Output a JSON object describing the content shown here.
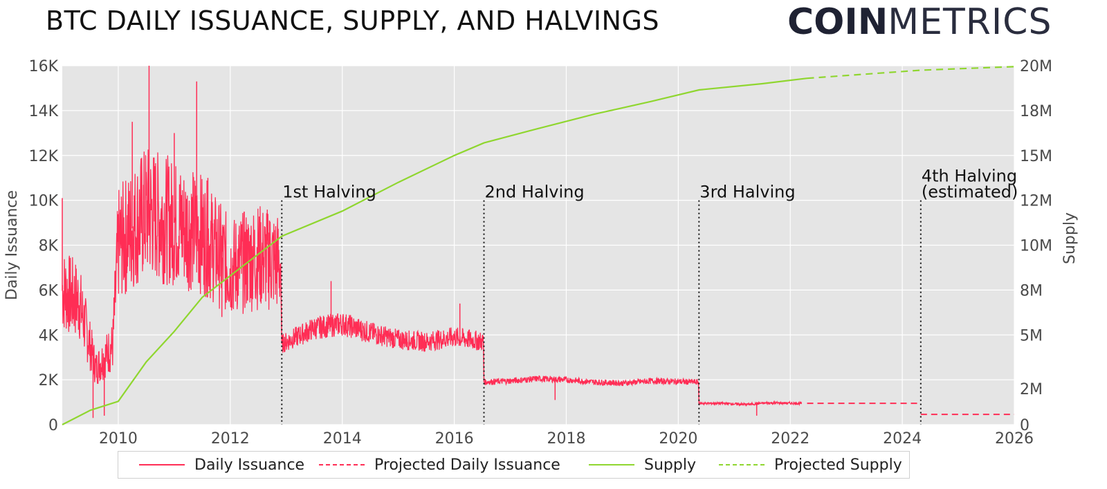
{
  "title": "BTC DAILY ISSUANCE, SUPPLY, AND HALVINGS",
  "logo": {
    "bold": "COIN",
    "light": "METRICS"
  },
  "chart_data": {
    "type": "line",
    "x_axis": {
      "label": "",
      "range": [
        2009,
        2026
      ],
      "ticks": [
        "2010",
        "2012",
        "2014",
        "2016",
        "2018",
        "2020",
        "2022",
        "2024",
        "2026"
      ]
    },
    "y_left": {
      "label": "Daily Issuance",
      "range": [
        0,
        16000
      ],
      "ticks": [
        "0",
        "2K",
        "4K",
        "6K",
        "8K",
        "10K",
        "12K",
        "14K",
        "16K"
      ]
    },
    "y_right": {
      "label": "Supply",
      "range": [
        0,
        20000000
      ],
      "ticks": [
        "0",
        "2M",
        "5M",
        "8M",
        "10M",
        "12M",
        "15M",
        "18M",
        "20M"
      ]
    },
    "grid": true,
    "legend_position": "bottom",
    "colors": {
      "issuance": "#ff2d55",
      "supply": "#8fd62f",
      "background": "#e5e5e5"
    },
    "series": [
      {
        "name": "Daily Issuance",
        "axis": "left",
        "style": "solid",
        "segments": [
          {
            "x": [
              2009.0,
              2009.3,
              2009.6,
              2009.9,
              2010.0,
              2010.5,
              2011.0,
              2011.5,
              2012.0,
              2012.5,
              2012.9
            ],
            "y": [
              6000,
              5500,
              2500,
              3500,
              8000,
              9500,
              9000,
              8500,
              7000,
              7500,
              7200
            ]
          },
          {
            "x": [
              2012.92,
              2013.5,
              2014.0,
              2014.5,
              2015.0,
              2015.5,
              2016.0,
              2016.52
            ],
            "y": [
              3600,
              4300,
              4500,
              4100,
              3800,
              3700,
              3900,
              3700
            ]
          },
          {
            "x": [
              2016.53,
              2017.0,
              2017.5,
              2018.0,
              2018.5,
              2019.0,
              2019.5,
              2020.36
            ],
            "y": [
              1900,
              1950,
              2050,
              2000,
              1900,
              1850,
              1950,
              1900
            ]
          },
          {
            "x": [
              2020.37,
              2020.8,
              2021.2,
              2021.6,
              2022.2
            ],
            "y": [
              950,
              950,
              900,
              970,
              950
            ]
          }
        ],
        "spikes": [
          {
            "x": 2009.0,
            "y": 10100
          },
          {
            "x": 2009.55,
            "y": 300
          },
          {
            "x": 2009.75,
            "y": 400
          },
          {
            "x": 2010.25,
            "y": 13500
          },
          {
            "x": 2010.55,
            "y": 16000
          },
          {
            "x": 2011.0,
            "y": 13000
          },
          {
            "x": 2011.4,
            "y": 15300
          },
          {
            "x": 2011.6,
            "y": 11000
          },
          {
            "x": 2011.85,
            "y": 4800
          },
          {
            "x": 2012.7,
            "y": 9100
          },
          {
            "x": 2013.8,
            "y": 6400
          },
          {
            "x": 2016.1,
            "y": 5400
          },
          {
            "x": 2017.8,
            "y": 1100
          },
          {
            "x": 2021.4,
            "y": 400
          }
        ]
      },
      {
        "name": "Projected Daily Issuance",
        "axis": "left",
        "style": "dashed",
        "x": [
          2022.3,
          2024.33,
          2024.33,
          2026
        ],
        "y": [
          950,
          950,
          460,
          460
        ]
      },
      {
        "name": "Supply",
        "axis": "right",
        "style": "solid",
        "x": [
          2009.0,
          2009.5,
          2010.0,
          2010.5,
          2011.0,
          2011.5,
          2012.0,
          2012.5,
          2012.92,
          2014.0,
          2015.0,
          2016.0,
          2016.53,
          2017.5,
          2018.5,
          2019.5,
          2020.37,
          2021.5,
          2022.3
        ],
        "y": [
          0,
          800000,
          1300000,
          3500000,
          5200000,
          7100000,
          8300000,
          9500000,
          10500000,
          11900000,
          13500000,
          15000000,
          15700000,
          16500000,
          17300000,
          18000000,
          18650000,
          19000000,
          19300000
        ]
      },
      {
        "name": "Projected Supply",
        "axis": "right",
        "style": "dashed",
        "x": [
          2022.3,
          2024.33,
          2026
        ],
        "y": [
          19300000,
          19750000,
          19950000
        ]
      }
    ],
    "annotations": [
      {
        "x": 2012.92,
        "lines": [
          "1st Halving"
        ]
      },
      {
        "x": 2016.53,
        "lines": [
          "2nd Halving"
        ]
      },
      {
        "x": 2020.37,
        "lines": [
          "3rd Halving"
        ]
      },
      {
        "x": 2024.33,
        "lines": [
          "4th Halving",
          "(estimated)"
        ]
      }
    ]
  }
}
